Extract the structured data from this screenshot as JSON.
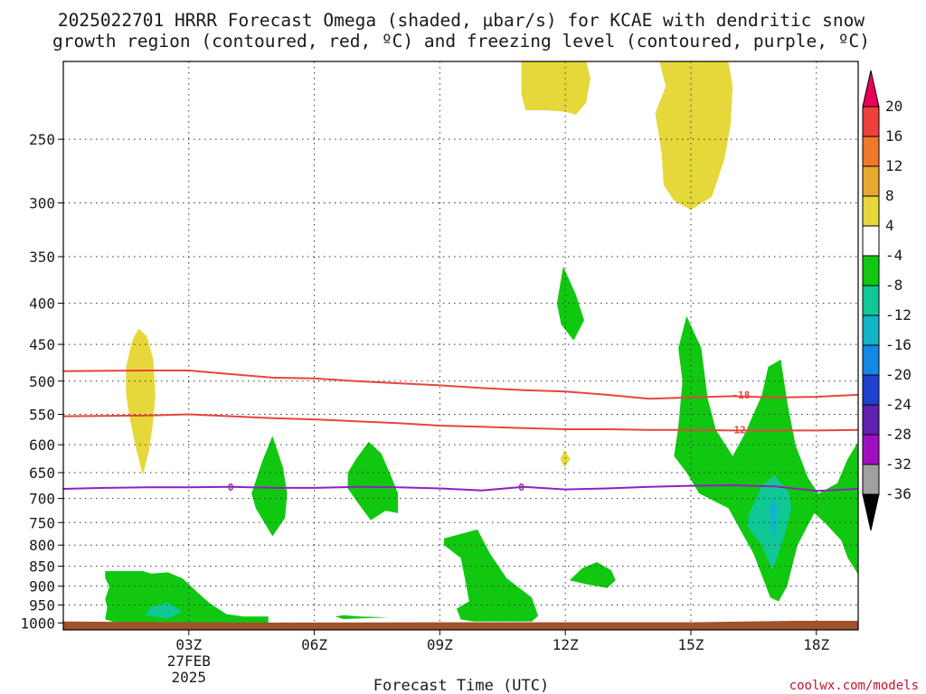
{
  "chart_data": {
    "type": "heatmap",
    "title_lines": [
      "2025022701 HRRR Forecast Omega (shaded, µbar/s) for KCAE with dendritic snow",
      "growth region (contoured, red, ºC) and freezing level (contoured, purple, ºC)"
    ],
    "xlabel": "Forecast Time (UTC)",
    "ylabel": "",
    "x_range_hours": [
      0,
      19
    ],
    "y_scale": "log",
    "y_range_mb": [
      1020,
      200
    ],
    "grid": true,
    "x_ticks": [
      {
        "hour": 3,
        "label": "03Z",
        "sub1": "27FEB",
        "sub2": "2025"
      },
      {
        "hour": 6,
        "label": "06Z",
        "sub1": "",
        "sub2": ""
      },
      {
        "hour": 9,
        "label": "09Z",
        "sub1": "",
        "sub2": ""
      },
      {
        "hour": 12,
        "label": "12Z",
        "sub1": "",
        "sub2": ""
      },
      {
        "hour": 15,
        "label": "15Z",
        "sub1": "",
        "sub2": ""
      },
      {
        "hour": 18,
        "label": "18Z",
        "sub1": "",
        "sub2": ""
      }
    ],
    "y_ticks": [
      {
        "mb": 250,
        "label": "250"
      },
      {
        "mb": 300,
        "label": "300"
      },
      {
        "mb": 350,
        "label": "350"
      },
      {
        "mb": 400,
        "label": "400"
      },
      {
        "mb": 450,
        "label": "450"
      },
      {
        "mb": 500,
        "label": "500"
      },
      {
        "mb": 550,
        "label": "550"
      },
      {
        "mb": 600,
        "label": "600"
      },
      {
        "mb": 650,
        "label": "650"
      },
      {
        "mb": 700,
        "label": "700"
      },
      {
        "mb": 750,
        "label": "750"
      },
      {
        "mb": 800,
        "label": "800"
      },
      {
        "mb": 850,
        "label": "850"
      },
      {
        "mb": 900,
        "label": "900"
      },
      {
        "mb": 950,
        "label": "950"
      },
      {
        "mb": 1000,
        "label": "1000"
      }
    ],
    "colorbar": {
      "levels": [
        "20",
        "16",
        "12",
        "8",
        "4",
        "-4",
        "-8",
        "-12",
        "-16",
        "-20",
        "-24",
        "-28",
        "-32",
        "-36"
      ],
      "colors": [
        "#e8005a",
        "#f0403c",
        "#f07828",
        "#e8a830",
        "#e6d83a",
        "#ffffff",
        "#10c810",
        "#10c896",
        "#14b4c8",
        "#1488e6",
        "#2040d0",
        "#6020b0",
        "#a010c0",
        "#a0a0a0",
        "#000000"
      ]
    },
    "surface": {
      "color": "#a0522d",
      "hours": [
        0,
        5,
        10,
        15,
        17.5,
        19
      ],
      "pressure_mb": [
        996,
        999,
        998,
        998,
        994,
        994
      ]
    },
    "omega_regions": [
      {
        "level": "4",
        "points": [
          [
            1.5,
            480
          ],
          [
            1.65,
            445
          ],
          [
            1.8,
            430
          ],
          [
            2.0,
            440
          ],
          [
            2.15,
            470
          ],
          [
            2.2,
            520
          ],
          [
            2.15,
            560
          ],
          [
            2.05,
            610
          ],
          [
            1.9,
            655
          ],
          [
            1.75,
            610
          ],
          [
            1.6,
            560
          ],
          [
            1.5,
            520
          ]
        ]
      },
      {
        "level": "4",
        "points": [
          [
            10.95,
            200
          ],
          [
            12.5,
            200
          ],
          [
            12.6,
            210
          ],
          [
            12.5,
            225
          ],
          [
            12.25,
            233
          ],
          [
            12.0,
            231
          ],
          [
            11.5,
            230
          ],
          [
            11.05,
            230
          ],
          [
            10.95,
            220
          ]
        ]
      },
      {
        "level": "4",
        "points": [
          [
            14.25,
            200
          ],
          [
            15.9,
            200
          ],
          [
            16.0,
            215
          ],
          [
            15.95,
            240
          ],
          [
            15.8,
            265
          ],
          [
            15.5,
            295
          ],
          [
            15.0,
            306
          ],
          [
            14.6,
            298
          ],
          [
            14.35,
            285
          ],
          [
            14.3,
            260
          ],
          [
            14.15,
            232
          ],
          [
            14.4,
            215
          ]
        ]
      },
      {
        "level": "4",
        "points": [
          [
            11.98,
            610
          ],
          [
            12.12,
            625
          ],
          [
            11.98,
            640
          ],
          [
            11.88,
            625
          ]
        ]
      },
      {
        "level": "-4",
        "points": [
          [
            1.0,
            862
          ],
          [
            1.9,
            862
          ],
          [
            2.1,
            868
          ],
          [
            2.5,
            865
          ],
          [
            2.85,
            880
          ],
          [
            3.2,
            915
          ],
          [
            3.5,
            945
          ],
          [
            3.9,
            975
          ],
          [
            4.3,
            982
          ],
          [
            4.9,
            982
          ],
          [
            4.9,
            1000
          ],
          [
            4.0,
            1000
          ],
          [
            3.0,
            1000
          ],
          [
            2.0,
            1000
          ],
          [
            1.3,
            1000
          ],
          [
            1.0,
            990
          ],
          [
            1.05,
            955
          ],
          [
            1.0,
            935
          ],
          [
            1.1,
            900
          ],
          [
            1.0,
            880
          ]
        ]
      },
      {
        "level": "-4",
        "points": [
          [
            5.0,
            585
          ],
          [
            5.25,
            640
          ],
          [
            5.35,
            690
          ],
          [
            5.3,
            740
          ],
          [
            5.0,
            780
          ],
          [
            4.6,
            720
          ],
          [
            4.5,
            690
          ],
          [
            4.75,
            630
          ]
        ]
      },
      {
        "level": "-4",
        "points": [
          [
            7.3,
            595
          ],
          [
            7.6,
            615
          ],
          [
            7.8,
            650
          ],
          [
            8.0,
            690
          ],
          [
            8.0,
            730
          ],
          [
            7.7,
            725
          ],
          [
            7.35,
            745
          ],
          [
            7.05,
            710
          ],
          [
            6.8,
            680
          ],
          [
            6.8,
            650
          ],
          [
            7.0,
            625
          ]
        ]
      },
      {
        "level": "-4",
        "points": [
          [
            7.8,
            984
          ],
          [
            7.1,
            982
          ],
          [
            6.7,
            978
          ],
          [
            6.5,
            982
          ],
          [
            6.7,
            989
          ]
        ]
      },
      {
        "level": "-4",
        "points": [
          [
            9.9,
            765
          ],
          [
            10.2,
            820
          ],
          [
            10.6,
            880
          ],
          [
            11.2,
            930
          ],
          [
            11.35,
            980
          ],
          [
            11.2,
            996
          ],
          [
            9.8,
            996
          ],
          [
            9.5,
            990
          ],
          [
            9.4,
            960
          ],
          [
            9.7,
            940
          ],
          [
            9.6,
            880
          ],
          [
            9.5,
            830
          ],
          [
            9.1,
            800
          ],
          [
            9.1,
            785
          ],
          [
            9.5,
            775
          ]
        ]
      },
      {
        "level": "-4",
        "points": [
          [
            12.4,
            855
          ],
          [
            12.75,
            840
          ],
          [
            13.1,
            860
          ],
          [
            13.2,
            885
          ],
          [
            13.0,
            905
          ],
          [
            12.5,
            895
          ],
          [
            12.1,
            885
          ]
        ]
      },
      {
        "level": "-4",
        "points": [
          [
            11.95,
            360
          ],
          [
            12.25,
            390
          ],
          [
            12.45,
            420
          ],
          [
            12.2,
            445
          ],
          [
            11.9,
            425
          ],
          [
            11.8,
            400
          ]
        ]
      },
      {
        "level": "-4",
        "points": [
          [
            14.9,
            415
          ],
          [
            15.25,
            455
          ],
          [
            15.4,
            525
          ],
          [
            15.6,
            575
          ],
          [
            16.0,
            620
          ],
          [
            16.3,
            580
          ],
          [
            16.7,
            520
          ],
          [
            16.85,
            480
          ],
          [
            17.15,
            470
          ],
          [
            17.3,
            530
          ],
          [
            17.5,
            600
          ],
          [
            17.8,
            660
          ],
          [
            18.05,
            690
          ],
          [
            18.5,
            670
          ],
          [
            18.75,
            625
          ],
          [
            19.0,
            595
          ],
          [
            19.0,
            870
          ],
          [
            18.75,
            830
          ],
          [
            18.6,
            790
          ],
          [
            18.2,
            750
          ],
          [
            17.95,
            730
          ],
          [
            17.55,
            800
          ],
          [
            17.3,
            900
          ],
          [
            17.1,
            940
          ],
          [
            16.9,
            930
          ],
          [
            16.5,
            820
          ],
          [
            15.9,
            720
          ],
          [
            15.2,
            690
          ],
          [
            14.9,
            650
          ],
          [
            14.6,
            620
          ],
          [
            14.7,
            570
          ],
          [
            14.8,
            500
          ],
          [
            14.7,
            455
          ]
        ]
      },
      {
        "level": "-8",
        "points": [
          [
            16.4,
            730
          ],
          [
            16.7,
            675
          ],
          [
            17.0,
            655
          ],
          [
            17.35,
            690
          ],
          [
            17.4,
            720
          ],
          [
            17.2,
            790
          ],
          [
            16.95,
            860
          ],
          [
            16.7,
            800
          ],
          [
            16.35,
            760
          ]
        ]
      },
      {
        "level": "-8",
        "points": [
          [
            2.5,
            944
          ],
          [
            2.85,
            968
          ],
          [
            2.5,
            988
          ],
          [
            1.95,
            978
          ],
          [
            2.1,
            955
          ]
        ]
      },
      {
        "level": "-12",
        "points": [
          [
            16.95,
            700
          ],
          [
            17.08,
            720
          ],
          [
            17.0,
            790
          ],
          [
            16.9,
            760
          ],
          [
            16.88,
            720
          ]
        ]
      }
    ],
    "temperature_contours": [
      {
        "label": "-18",
        "kind": "dgz",
        "color": "#e8453c",
        "label_at": [
          16.2,
          520
        ],
        "points": [
          [
            0,
            486
          ],
          [
            2,
            485
          ],
          [
            3,
            485
          ],
          [
            4,
            490
          ],
          [
            5,
            495
          ],
          [
            6,
            496
          ],
          [
            7,
            500
          ],
          [
            8,
            503
          ],
          [
            9,
            506
          ],
          [
            10,
            510
          ],
          [
            11,
            513
          ],
          [
            12,
            515
          ],
          [
            13,
            520
          ],
          [
            14,
            526
          ],
          [
            15,
            524
          ],
          [
            16,
            522
          ],
          [
            17,
            524
          ],
          [
            18,
            523
          ],
          [
            19,
            520
          ]
        ]
      },
      {
        "label": "-12",
        "kind": "dgz",
        "color": "#e8453c",
        "label_at": [
          16.1,
          575
        ],
        "points": [
          [
            0,
            553
          ],
          [
            2,
            552
          ],
          [
            3,
            550
          ],
          [
            4,
            553
          ],
          [
            5,
            556
          ],
          [
            6,
            558
          ],
          [
            7,
            561
          ],
          [
            8,
            564
          ],
          [
            9,
            568
          ],
          [
            10,
            570
          ],
          [
            11,
            572
          ],
          [
            12,
            574
          ],
          [
            13,
            574
          ],
          [
            14,
            575
          ],
          [
            15,
            575
          ],
          [
            16,
            576
          ],
          [
            17,
            576
          ],
          [
            18,
            576
          ],
          [
            19,
            575
          ]
        ]
      },
      {
        "label": "0",
        "kind": "freezing",
        "color": "#9020c0",
        "label_at": [
          4,
          677
        ],
        "points": [
          [
            0,
            681
          ],
          [
            1,
            679
          ],
          [
            2,
            678
          ],
          [
            3,
            678
          ],
          [
            4,
            677
          ],
          [
            5,
            679
          ],
          [
            6,
            679
          ],
          [
            7,
            677
          ],
          [
            8,
            678
          ],
          [
            9,
            680
          ],
          [
            10,
            684
          ],
          [
            11,
            677
          ],
          [
            12,
            682
          ],
          [
            13,
            680
          ],
          [
            14,
            677
          ],
          [
            15,
            675
          ],
          [
            16,
            674
          ],
          [
            17,
            676
          ],
          [
            18,
            685
          ],
          [
            19,
            681
          ]
        ]
      },
      {
        "label": "0",
        "kind": "freezing-label",
        "color": "#9020c0",
        "label_at": [
          10.95,
          677
        ],
        "points": []
      }
    ]
  },
  "credit": "coolwx.com/models"
}
